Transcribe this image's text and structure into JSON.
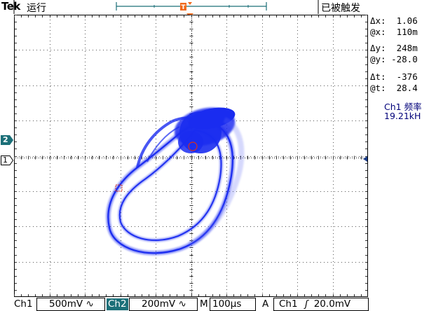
{
  "header": {
    "brand": "Tek",
    "run_state": "运行",
    "trigger_state": "已被触发"
  },
  "markers": {
    "trigger_position": "T",
    "ch2_ground": "2",
    "ch1_ground": "1"
  },
  "measurements": {
    "delta_x": "Δx:  1.06",
    "at_x": "@x:  110m",
    "delta_y": "Δy:  248m",
    "at_y": "@y: -28.0",
    "delta_t": "Δt:  -376",
    "at_t": "@t:  28.4",
    "freq_label": "Ch1 频率",
    "freq_value": "19.21kH"
  },
  "footer": {
    "ch1_label": "Ch1",
    "ch1_scale": "500mV",
    "ch1_coupling": "∿",
    "ch2_label": "Ch2",
    "ch2_scale": "200mV",
    "ch2_coupling": "∿",
    "timebase_label": "M",
    "timebase": "100µs",
    "acq_label": "A",
    "trig_source": "Ch1",
    "trig_slope": "ʃ",
    "trig_level": "20.0mV"
  },
  "colors": {
    "trace": "#1a2cf0",
    "trigger_marker": "#f06a1c",
    "channel_marker": "#1b6f78"
  }
}
